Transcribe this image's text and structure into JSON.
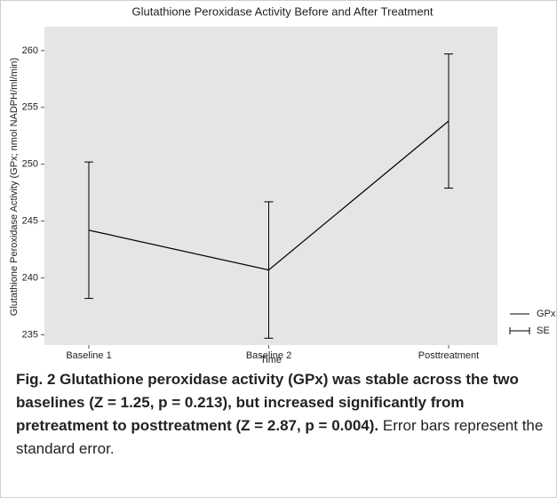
{
  "chart_data": {
    "type": "line",
    "title": "Glutathione Peroxidase Activity Before and After Treatment",
    "x_label": "Time",
    "y_label": "Glutathione Peroxidase Activity (GPx; nmol NADPH/ml/min)",
    "categories": [
      "Baseline 1",
      "Baseline 2",
      "Posttreatment"
    ],
    "series": [
      {
        "name": "GPx",
        "color": "#000000",
        "values": [
          244.2,
          240.7,
          253.8
        ],
        "errors": [
          6.0,
          6.0,
          5.9
        ]
      }
    ],
    "error_label": "SE",
    "ylim": [
      234.1,
      262.1
    ],
    "yticks": [
      235,
      240,
      245,
      250,
      255,
      260
    ],
    "grid": false,
    "panel_color": "#e5e5e5",
    "legend": "right"
  },
  "caption": {
    "bold": "Fig. 2 Glutathione peroxidase activity (GPx) was stable across the two baselines (Z = 1.25, p = 0.213), but increased significantly from pretreatment to posttreatment (Z = 2.87, p = 0.004).",
    "text": "Error bars represent the standard error."
  }
}
